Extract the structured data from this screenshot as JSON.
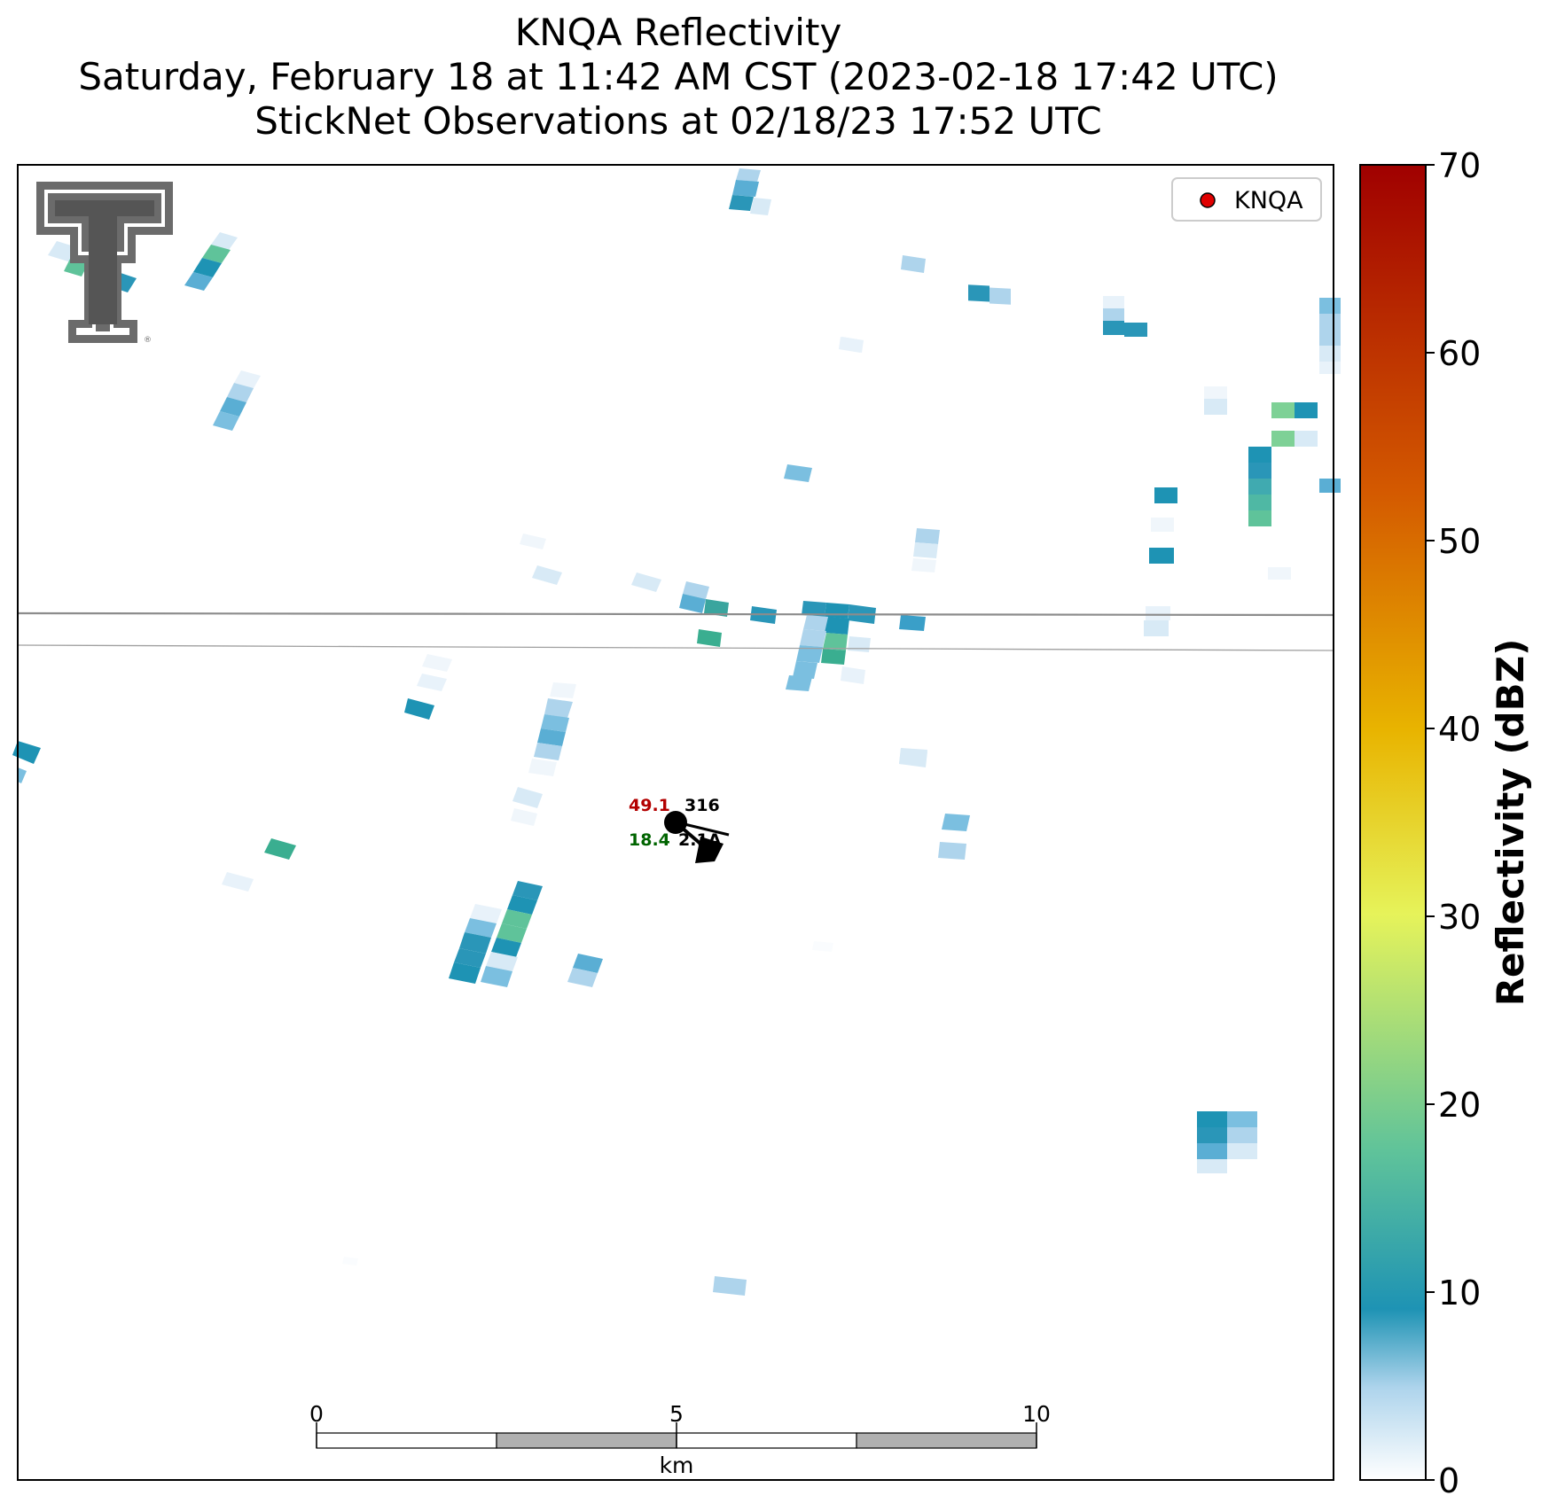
{
  "title": {
    "line1": "KNQA Reflectivity",
    "line2": "Saturday, February 18 at 11:42 AM CST (2023-02-18 17:42 UTC)",
    "line3": "StickNet Observations at 02/18/23 17:52 UTC"
  },
  "legend": {
    "label": "KNQA",
    "marker_color": "#e00000"
  },
  "colorbar": {
    "label": "Reflectivity (dBZ)",
    "ticks": [
      "0",
      "10",
      "20",
      "30",
      "40",
      "50",
      "60",
      "70"
    ],
    "min": 0,
    "max": 70,
    "colors": [
      "#ffffff",
      "#aed4ec",
      "#1e93b4",
      "#5fc39a",
      "#e6f35a",
      "#e8b400",
      "#d45a00",
      "#a00000"
    ]
  },
  "scalebar": {
    "ticks": [
      "0",
      "5",
      "10"
    ],
    "unit": "km"
  },
  "station": {
    "temperature": "49.1",
    "dewpoint": "18.4",
    "top_right": "316",
    "bottom_right": "2.1A",
    "temperature_color": "#b30000",
    "dewpoint_color": "#006400"
  },
  "logo": {
    "text": "TT"
  },
  "colors": {
    "frame": "#000000",
    "boundary": "#8c8c8c",
    "scale_dark": "#b0b0b0"
  }
}
